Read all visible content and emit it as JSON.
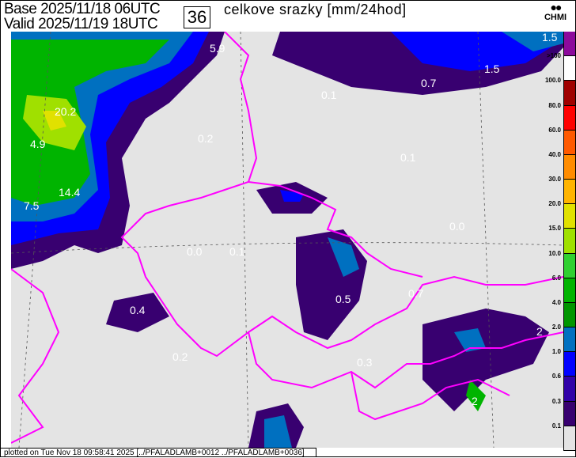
{
  "header": {
    "base": "Base 2025/11/18 06UTC",
    "valid": "Valid 2025/11/19 18UTC",
    "forecast_hour": "36",
    "title": "celkove srazky [mm/24hod]",
    "logo": "CHMI"
  },
  "legend": {
    "labels": [
      ">100",
      "100.0",
      "80.0",
      "60.0",
      "40.0",
      "30.0",
      "20.0",
      "15.0",
      "10.0",
      "6.0",
      "4.0",
      "2.0",
      "1.0",
      "0.6",
      "0.3",
      "0.1"
    ],
    "colors": [
      "#8c0a9c",
      "#ffffff",
      "#a00000",
      "#ff0000",
      "#ff5a00",
      "#ff8c00",
      "#ffb400",
      "#e1e100",
      "#a0e000",
      "#30d030",
      "#00b400",
      "#009600",
      "#0070c0",
      "#0000ff",
      "#3000a8",
      "#380070",
      "#e4e4e4"
    ]
  },
  "map": {
    "background": "#e4e4e4",
    "border_color": "#ff00ff",
    "values": [
      "5.9",
      "1.5",
      "1.5",
      "0.7",
      "0.1",
      "20.2",
      "0.2",
      "4.9",
      "0.1",
      "14.4",
      "7.5",
      "0.0",
      "0.0",
      "0.1",
      "0.5",
      "0.7",
      "0.4",
      "0.2",
      "0.3",
      "2",
      "2"
    ]
  },
  "footer": "plotted on Tue Nov 18 09:58:41 2025 [../PFALADLAMB+0012 ../PFALADLAMB+0036]"
}
